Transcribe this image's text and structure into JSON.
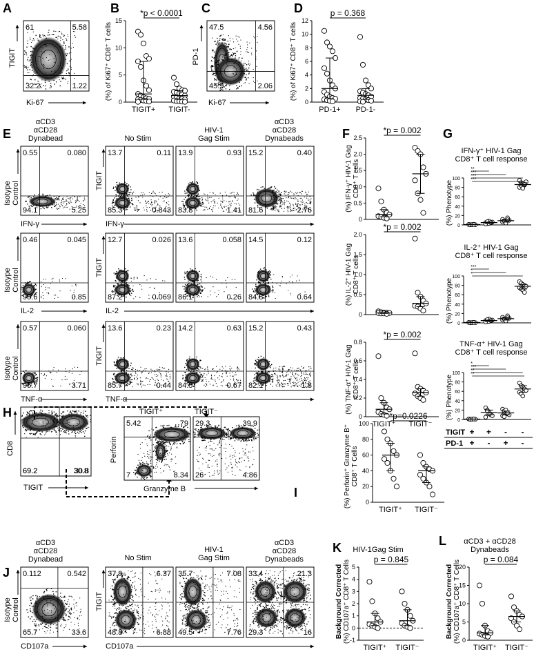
{
  "panels": {
    "A": {
      "letter": "A",
      "ylabel": "TIGIT",
      "xlabel": "Ki-67",
      "quads": {
        "ul": "61",
        "ur": "5.58",
        "ll": "32.2",
        "lr": "1.22"
      }
    },
    "B": {
      "letter": "B",
      "ylabel": "(%) of Ki67⁺ CD8⁺ T cells",
      "stat": "*p < 0.0001",
      "yticks": [
        "0",
        "5",
        "10",
        "15"
      ],
      "groups": [
        "TIGIT+",
        "TIGIT-"
      ],
      "chart_data": {
        "type": "scatter",
        "categories": [
          "TIGIT+",
          "TIGIT-"
        ],
        "ylim": [
          0,
          15
        ],
        "series": [
          {
            "values": [
              13,
              12.4,
              10.8,
              8.5,
              8,
              7.5,
              6.5,
              4,
              3,
              2.2,
              1.5,
              1.2,
              0.9,
              0.7,
              0.6,
              0.5,
              0.4,
              0.3,
              0.2,
              0.1,
              0.05
            ]
          },
          {
            "values": [
              4.5,
              3.3,
              2.5,
              2.2,
              2.1,
              1.9,
              1.8,
              1.6,
              1.4,
              1.2,
              1.0,
              0.9,
              0.7,
              0.6,
              0.5,
              0.3,
              0.2,
              0.15,
              0.1,
              0.05
            ]
          }
        ]
      }
    },
    "C": {
      "letter": "C",
      "ylabel": "PD-1",
      "xlabel": "Ki-67",
      "quads": {
        "ul": "47.5",
        "ur": "4.56",
        "ll": "45.9",
        "lr": "2.06"
      }
    },
    "D": {
      "letter": "D",
      "ylabel": "(%) of Ki67⁺ CD8⁺ T cells",
      "stat": "p = 0.368",
      "yticks": [
        "0",
        "2",
        "4",
        "6",
        "8",
        "10",
        "12"
      ],
      "groups": [
        "PD-1+",
        "PD-1-"
      ],
      "chart_data": {
        "type": "scatter",
        "categories": [
          "PD-1+",
          "PD-1-"
        ],
        "ylim": [
          0,
          12
        ],
        "series": [
          {
            "values": [
              10.5,
              8.8,
              8.2,
              7.5,
              6.5,
              5,
              4.2,
              3.2,
              2.5,
              2,
              1.5,
              1.1,
              0.8,
              0.6,
              0.5,
              0.4,
              0.3,
              0.2,
              0.1
            ]
          },
          {
            "values": [
              9.6,
              5.5,
              3.2,
              2.5,
              2.0,
              1.6,
              1.4,
              1.2,
              1.0,
              0.8,
              0.6,
              0.5,
              0.4,
              0.3,
              0.2,
              0.1,
              0.05
            ]
          }
        ]
      }
    },
    "E": {
      "letter": "E",
      "headers": {
        "iso": "αCD3\nαCD28\nDynabead",
        "nostim": "No Stim",
        "gag": "HIV-1\nGag Stim",
        "dyna": "αCD3\nαCD28\nDynabeads"
      },
      "rows": [
        {
          "xlabel": "IFN-γ",
          "iso": [
            "0.55",
            "0.080",
            "94.1",
            "5.25"
          ],
          "nostim": [
            "13.7",
            "0.11",
            "85.3",
            "0.843"
          ],
          "gag": [
            "13.9",
            "0.93",
            "83.8",
            "1.41"
          ],
          "dyna": [
            "15.2",
            "0.40",
            "81.6",
            "2.76"
          ]
        },
        {
          "xlabel": "IL-2",
          "iso": [
            "0.46",
            "0.045",
            "98.6",
            "0.85"
          ],
          "nostim": [
            "12.7",
            "0.026",
            "87.2",
            "0.069"
          ],
          "gag": [
            "13.6",
            "0.058",
            "86.1",
            "0.26"
          ],
          "dyna": [
            "14.5",
            "0.12",
            "84.8",
            "0.64"
          ]
        },
        {
          "xlabel": "TNF-α",
          "iso": [
            "0.57",
            "0.060",
            "95.7",
            "3.71"
          ],
          "nostim": [
            "13.6",
            "0.23",
            "85.7",
            "0.44"
          ],
          "gag": [
            "14.2",
            "0.63",
            "84.5",
            "0.67"
          ],
          "dyna": [
            "15.2",
            "0.43",
            "82.1",
            "1.8"
          ]
        }
      ],
      "isoLabel": "Isotype\nControl",
      "tigit": "TIGIT"
    },
    "F": {
      "letter": "F",
      "subs": [
        {
          "ylabel": "(%) IFN-γ⁺ HIV-1 Gag CD8⁺ T cells",
          "stat": "*p = 0.002",
          "yticks": [
            "0",
            "0.5",
            "1.0",
            "1.5",
            "2.0",
            "2.5"
          ],
          "ylim": [
            0,
            2.5
          ],
          "series": [
            [
              0.95,
              0.55,
              0.3,
              0.2,
              0.15,
              0.1,
              0.08,
              0.05,
              0.03
            ],
            [
              2.2,
              2.1,
              2.0,
              1.6,
              1.4,
              1.2,
              0.8,
              0.6,
              0.2
            ]
          ]
        },
        {
          "ylabel": "(%) IL-2⁺ HIV-1 Gag CD8⁺ T cells",
          "stat": "*p = 0.002",
          "yticks": [
            "0",
            "0.5",
            "1.0",
            "1.5",
            "2.0"
          ],
          "ylim": [
            0,
            2.0
          ],
          "series": [
            [
              0.08,
              0.06,
              0.05,
              0.05,
              0.04,
              0.04,
              0.03,
              0.03,
              0.02
            ],
            [
              1.9,
              0.55,
              0.45,
              0.35,
              0.28,
              0.22,
              0.2,
              0.15,
              0.1
            ]
          ]
        },
        {
          "ylabel": "(%) TNF-α⁺ HIV-1 Gag CD8⁺ T cells",
          "stat": "*p = 0.002",
          "yticks": [
            "0",
            "0.2",
            "0.4",
            "0.6",
            "0.8"
          ],
          "ylim": [
            0,
            0.8
          ],
          "series": [
            [
              0.65,
              0.2,
              0.15,
              0.1,
              0.08,
              0.05,
              0.03,
              0.02,
              0.01
            ],
            [
              0.68,
              0.32,
              0.3,
              0.28,
              0.26,
              0.25,
              0.22,
              0.2,
              0.18
            ]
          ]
        }
      ],
      "groups": [
        "TIGIT⁺",
        "TIGIT⁻"
      ]
    },
    "G": {
      "letter": "G",
      "subs": [
        {
          "title": "IFN-γ⁺ HIV-1 Gag\nCD8⁺ T cell response",
          "ylabel": "(%) Phenotype",
          "yticks": [
            "0",
            "20",
            "40",
            "60",
            "80",
            "100"
          ],
          "series": [
            [
              1,
              0.5,
              0.8,
              1.2,
              0.5,
              1,
              0.3,
              0.6,
              0.9
            ],
            [
              5,
              3,
              8,
              4,
              6,
              2,
              7,
              3,
              5
            ],
            [
              12,
              8,
              5,
              15,
              10,
              6,
              9,
              4,
              11
            ],
            [
              95,
              90,
              88,
              85,
              92,
              80,
              84,
              78,
              86
            ]
          ],
          "sig": [
            "**",
            "***",
            "***",
            "***"
          ]
        },
        {
          "title": "IL-2⁺ HIV-1 Gag\nCD8⁺ T cell response",
          "ylabel": "(%) Phenotype",
          "yticks": [
            "0",
            "20",
            "40",
            "60",
            "80",
            "100"
          ],
          "series": [
            [
              1,
              0.5,
              0.8,
              1.2,
              0.5,
              1,
              0.3,
              0.6,
              0.9
            ],
            [
              5,
              3,
              8,
              4,
              6,
              2,
              7,
              3,
              5
            ],
            [
              12,
              8,
              5,
              15,
              10,
              6,
              9,
              4,
              11
            ],
            [
              88,
              85,
              82,
              80,
              78,
              75,
              72,
              70,
              65
            ]
          ],
          "sig": [
            "***",
            "*",
            "*"
          ]
        },
        {
          "title": "TNF-α⁺ HIV-1 Gag\nCD8⁺ T cell response",
          "ylabel": "(%) Phenotype",
          "yticks": [
            "0",
            "20",
            "40",
            "60",
            "80",
            "100"
          ],
          "series": [
            [
              1,
              0.5,
              0.8,
              1.2,
              0.5,
              1,
              0.3,
              0.6,
              0.9
            ],
            [
              25,
              20,
              15,
              10,
              8,
              5,
              18,
              12
            ],
            [
              22,
              18,
              15,
              12,
              10,
              8,
              6,
              20,
              14
            ],
            [
              78,
              72,
              70,
              65,
              62,
              58,
              55,
              50
            ]
          ],
          "sig": [
            "*",
            "***",
            "**",
            "**"
          ]
        }
      ],
      "rowlabels": {
        "tigit": "TIGIT",
        "pd1": "PD-1"
      },
      "tigitSigns": [
        "+",
        "+",
        "-",
        "-"
      ],
      "pd1Signs": [
        "+",
        "-",
        "+",
        "-"
      ]
    },
    "H": {
      "letter": "H",
      "xlabel1": "TIGIT",
      "ylabel1": "CD8",
      "quads1": [
        "69.2",
        "30.8"
      ],
      "xlabel2": "Granzyme B",
      "ylabel2": "Perforin",
      "pos": "TIGIT⁺",
      "neg": "TIGIT⁻",
      "quadsPos": [
        "5.42",
        "79",
        "7",
        "8.34"
      ],
      "quadsNeg": [
        "29.3",
        "39.9",
        "26",
        "4.86"
      ]
    },
    "I": {
      "letter": "I",
      "ylabel": "(%) Perforin⁺ Granzyme B⁺ CD8⁺ T Cells",
      "stat": "*p=0.0226",
      "yticks": [
        "0",
        "20",
        "40",
        "60",
        "80",
        "100"
      ],
      "groups": [
        "TIGIT⁺",
        "TIGIT⁻"
      ],
      "chart_data": {
        "type": "scatter",
        "categories": [
          "TIGIT⁺",
          "TIGIT⁻"
        ],
        "ylim": [
          0,
          100
        ],
        "series": [
          {
            "values": [
              90,
              80,
              75,
              65,
              60,
              55,
              50,
              40,
              30,
              20
            ]
          },
          {
            "values": [
              60,
              50,
              45,
              42,
              40,
              35,
              30,
              25,
              20,
              10
            ]
          }
        ]
      }
    },
    "J": {
      "letter": "J",
      "headers": {
        "iso": "αCD3\nαCD28\nDynabead",
        "nostim": "No Stim",
        "gag": "HIV-1\nGag Stim",
        "dyna": "αCD3\nαCD28\nDynabeads"
      },
      "iso": [
        "0.112",
        "0.542",
        "65.7",
        "33.6"
      ],
      "nostim": [
        "37.9",
        "6.37",
        "48.8",
        "6.88"
      ],
      "gag": [
        "35.7",
        "7.08",
        "49.5",
        "7.76"
      ],
      "dyna": [
        "33.4",
        "21.3",
        "29.3",
        "16"
      ],
      "xlabel": "CD107a",
      "isoLabel": "Isotype\nControl",
      "tigit": "TIGIT"
    },
    "K": {
      "letter": "K",
      "title": "HIV-1Gag Stim",
      "ylabel": "Background Corrected\n(%) CD107a⁺ CD8⁺ T Cells",
      "stat": "p = 0.845",
      "yticks": [
        "-1",
        "0",
        "1",
        "2",
        "3",
        "4",
        "5"
      ],
      "groups": [
        "TIGIT⁺",
        "TIGIT⁻"
      ],
      "chart_data": {
        "type": "scatter",
        "categories": [
          "TIGIT⁺",
          "TIGIT⁻"
        ],
        "ylim": [
          -1,
          5
        ],
        "series": [
          {
            "values": [
              3.8,
              2.2,
              1.2,
              0.8,
              0.5,
              0.3,
              0.2,
              0.1,
              0
            ]
          },
          {
            "values": [
              3,
              2,
              1.5,
              1,
              0.6,
              0.4,
              0.2,
              0.1,
              0
            ]
          }
        ]
      }
    },
    "L": {
      "letter": "L",
      "title": "αCD3 + αCD28\nDynabeads",
      "ylabel": "Background Corrected\n(%) CD107a⁺ CD8⁺ T Cells",
      "stat": "p = 0.084",
      "yticks": [
        "0",
        "5",
        "10",
        "15",
        "20"
      ],
      "groups": [
        "TIGIT⁺",
        "TIGIT⁻"
      ],
      "chart_data": {
        "type": "scatter",
        "categories": [
          "TIGIT⁺",
          "TIGIT⁻"
        ],
        "ylim": [
          0,
          20
        ],
        "series": [
          {
            "values": [
              15,
              10,
              4,
              2.5,
              2,
              1.8,
              1.5,
              1.2,
              1
            ]
          },
          {
            "values": [
              12,
              9,
              8,
              7,
              6.5,
              6,
              5,
              4,
              3
            ]
          }
        ]
      }
    }
  }
}
